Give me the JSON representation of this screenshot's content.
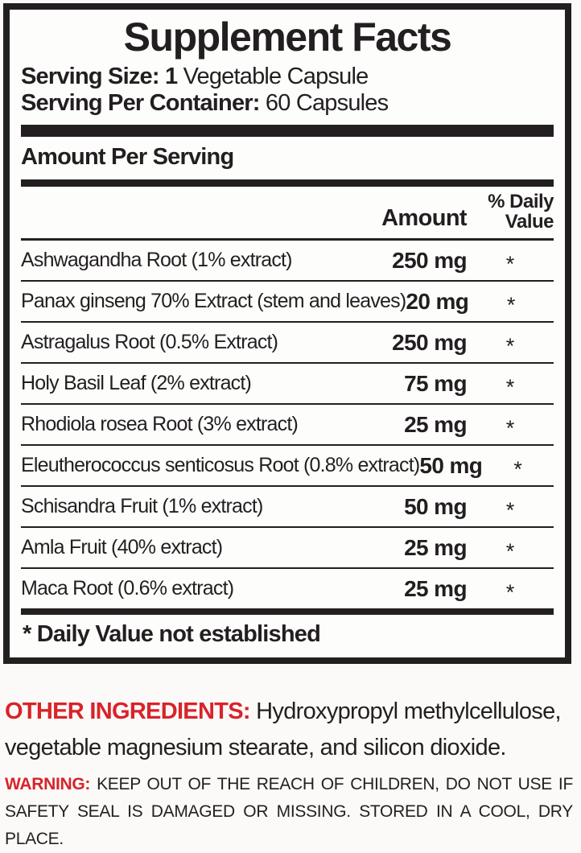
{
  "label": {
    "title": "Supplement Facts",
    "serving_size_label": "Serving Size: 1",
    "serving_size_value": " Vegetable Capsule",
    "servings_per_container_label": "Serving Per Container:",
    "servings_per_container_value": " 60 Capsules",
    "section_header": "Amount Per Serving",
    "columns": {
      "amount": "Amount",
      "daily_value": "% Daily Value"
    },
    "rows": [
      {
        "name": "Ashwagandha Root (1% extract)",
        "amount": "250 mg",
        "dv": "*"
      },
      {
        "name": "Panax ginseng 70% Extract (stem and leaves)",
        "amount": "20 mg",
        "dv": "*"
      },
      {
        "name": "Astragalus Root (0.5% Extract)",
        "amount": "250 mg",
        "dv": "*"
      },
      {
        "name": "Holy Basil Leaf (2% extract)",
        "amount": "75 mg",
        "dv": "*"
      },
      {
        "name": "Rhodiola rosea Root (3% extract)",
        "amount": "25 mg",
        "dv": "*"
      },
      {
        "name": "Eleutherococcus senticosus Root (0.8% extract)",
        "amount": "50 mg",
        "dv": "*"
      },
      {
        "name": "Schisandra Fruit (1% extract)",
        "amount": "50 mg",
        "dv": "*"
      },
      {
        "name": "Amla Fruit (40% extract)",
        "amount": "25 mg",
        "dv": "*"
      },
      {
        "name": "Maca Root (0.6% extract)",
        "amount": "25 mg",
        "dv": "*"
      }
    ],
    "footnote": "* Daily Value not established"
  },
  "other_ingredients": {
    "label": "OTHER INGREDIENTS:",
    "text": " Hydroxypropyl methylcellulose, vegetable magnesium stearate, and silicon dioxide."
  },
  "warning": {
    "label": "WARNING:",
    "text": " KEEP OUT OF THE REACH OF CHILDREN, DO NOT USE IF SAFETY SEAL IS DAMAGED OR MISSING. STORED IN A COOL, DRY PLACE."
  },
  "colors": {
    "accent_red": "#d9232a",
    "ink": "#231f20"
  }
}
